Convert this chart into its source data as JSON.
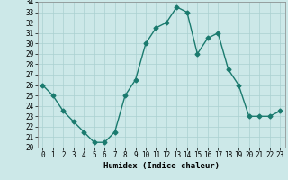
{
  "x": [
    0,
    1,
    2,
    3,
    4,
    5,
    6,
    7,
    8,
    9,
    10,
    11,
    12,
    13,
    14,
    15,
    16,
    17,
    18,
    19,
    20,
    21,
    22,
    23
  ],
  "y": [
    26,
    25,
    23.5,
    22.5,
    21.5,
    20.5,
    20.5,
    21.5,
    25,
    26.5,
    30,
    31.5,
    32,
    33.5,
    33,
    29,
    30.5,
    31,
    27.5,
    26,
    23,
    23,
    23,
    23.5
  ],
  "line_color": "#1a7a6e",
  "marker_color": "#1a7a6e",
  "bg_color": "#cce8e8",
  "grid_color": "#aad0d0",
  "xlabel": "Humidex (Indice chaleur)",
  "ylim": [
    20,
    34
  ],
  "xlim": [
    -0.5,
    23.5
  ],
  "yticks": [
    20,
    21,
    22,
    23,
    24,
    25,
    26,
    27,
    28,
    29,
    30,
    31,
    32,
    33,
    34
  ],
  "xticks": [
    0,
    1,
    2,
    3,
    4,
    5,
    6,
    7,
    8,
    9,
    10,
    11,
    12,
    13,
    14,
    15,
    16,
    17,
    18,
    19,
    20,
    21,
    22,
    23
  ],
  "xlabel_fontsize": 6.5,
  "tick_fontsize": 5.5,
  "linewidth": 1.0,
  "markersize": 2.5
}
